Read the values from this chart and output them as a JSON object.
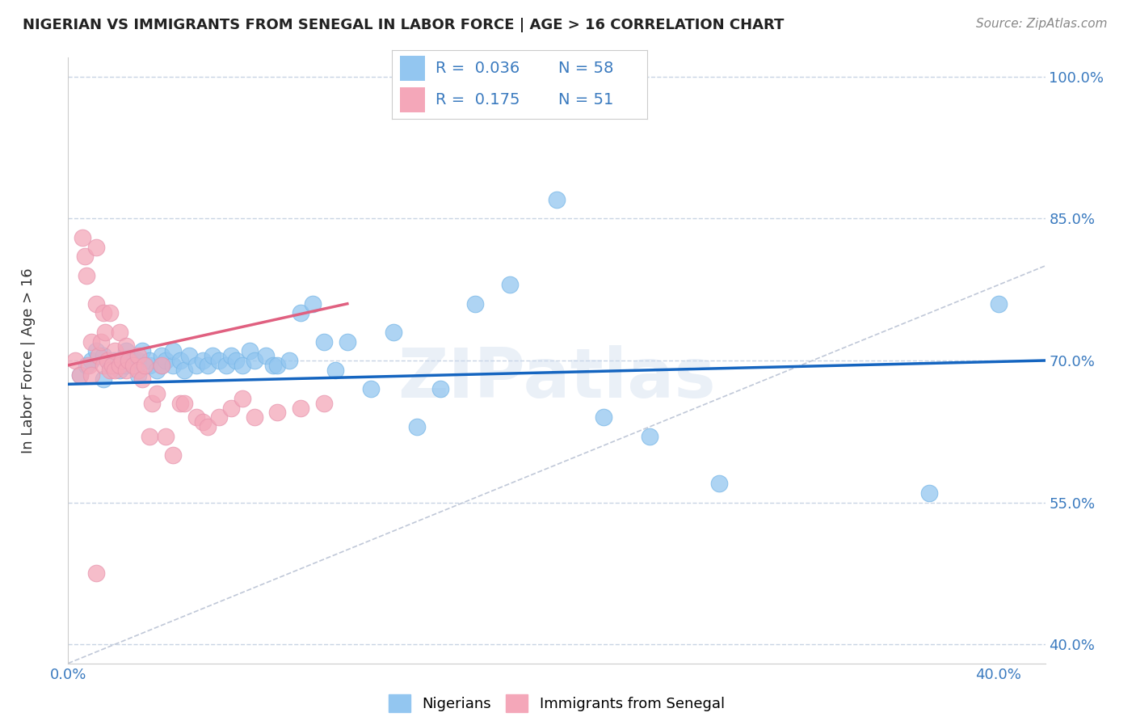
{
  "title": "NIGERIAN VS IMMIGRANTS FROM SENEGAL IN LABOR FORCE | AGE > 16 CORRELATION CHART",
  "source_text": "Source: ZipAtlas.com",
  "ylabel": "In Labor Force | Age > 16",
  "xlim": [
    0.0,
    0.42
  ],
  "ylim": [
    0.38,
    1.02
  ],
  "yticks": [
    0.4,
    0.55,
    0.7,
    0.85,
    1.0
  ],
  "ytick_labels": [
    "40.0%",
    "55.0%",
    "70.0%",
    "85.0%",
    "100.0%"
  ],
  "xtick_positions": [
    0.0,
    0.1,
    0.2,
    0.3,
    0.4
  ],
  "xtick_labels": [
    "0.0%",
    "",
    "",
    "",
    "40.0%"
  ],
  "legend_r1": "0.036",
  "legend_n1": "58",
  "legend_r2": "0.175",
  "legend_n2": "51",
  "color_nigerian": "#93C6F0",
  "color_senegal": "#F4A7B9",
  "color_nigerian_line": "#1565C0",
  "color_senegal_line": "#E06080",
  "color_diagonal": "#c0c8d8",
  "background_color": "#ffffff",
  "grid_color": "#c8d4e4",
  "watermark": "ZIPatlas",
  "nigerian_x": [
    0.005,
    0.008,
    0.01,
    0.012,
    0.015,
    0.015,
    0.018,
    0.02,
    0.022,
    0.025,
    0.025,
    0.028,
    0.03,
    0.03,
    0.032,
    0.035,
    0.035,
    0.038,
    0.04,
    0.04,
    0.042,
    0.045,
    0.045,
    0.048,
    0.05,
    0.052,
    0.055,
    0.058,
    0.06,
    0.062,
    0.065,
    0.068,
    0.07,
    0.072,
    0.075,
    0.078,
    0.08,
    0.085,
    0.088,
    0.09,
    0.095,
    0.1,
    0.105,
    0.11,
    0.115,
    0.12,
    0.13,
    0.14,
    0.15,
    0.16,
    0.175,
    0.19,
    0.21,
    0.23,
    0.25,
    0.28,
    0.37,
    0.4
  ],
  "nigerian_y": [
    0.685,
    0.695,
    0.7,
    0.71,
    0.68,
    0.705,
    0.695,
    0.7,
    0.69,
    0.71,
    0.695,
    0.7,
    0.685,
    0.7,
    0.71,
    0.695,
    0.7,
    0.69,
    0.695,
    0.705,
    0.7,
    0.695,
    0.71,
    0.7,
    0.69,
    0.705,
    0.695,
    0.7,
    0.695,
    0.705,
    0.7,
    0.695,
    0.705,
    0.7,
    0.695,
    0.71,
    0.7,
    0.705,
    0.695,
    0.695,
    0.7,
    0.75,
    0.76,
    0.72,
    0.69,
    0.72,
    0.67,
    0.73,
    0.63,
    0.67,
    0.76,
    0.78,
    0.87,
    0.64,
    0.62,
    0.57,
    0.56,
    0.76
  ],
  "senegal_x": [
    0.003,
    0.005,
    0.006,
    0.007,
    0.008,
    0.009,
    0.01,
    0.01,
    0.012,
    0.012,
    0.013,
    0.014,
    0.015,
    0.015,
    0.016,
    0.017,
    0.018,
    0.018,
    0.019,
    0.02,
    0.02,
    0.022,
    0.022,
    0.023,
    0.025,
    0.025,
    0.026,
    0.028,
    0.03,
    0.03,
    0.032,
    0.033,
    0.035,
    0.036,
    0.038,
    0.04,
    0.042,
    0.045,
    0.048,
    0.05,
    0.055,
    0.058,
    0.06,
    0.065,
    0.07,
    0.075,
    0.08,
    0.09,
    0.1,
    0.11,
    0.012
  ],
  "senegal_y": [
    0.7,
    0.685,
    0.83,
    0.81,
    0.79,
    0.695,
    0.72,
    0.685,
    0.82,
    0.76,
    0.705,
    0.72,
    0.75,
    0.695,
    0.73,
    0.7,
    0.69,
    0.75,
    0.695,
    0.71,
    0.69,
    0.73,
    0.695,
    0.7,
    0.715,
    0.69,
    0.7,
    0.695,
    0.705,
    0.69,
    0.68,
    0.695,
    0.62,
    0.655,
    0.665,
    0.695,
    0.62,
    0.6,
    0.655,
    0.655,
    0.64,
    0.635,
    0.63,
    0.64,
    0.65,
    0.66,
    0.64,
    0.645,
    0.65,
    0.655,
    0.475
  ]
}
